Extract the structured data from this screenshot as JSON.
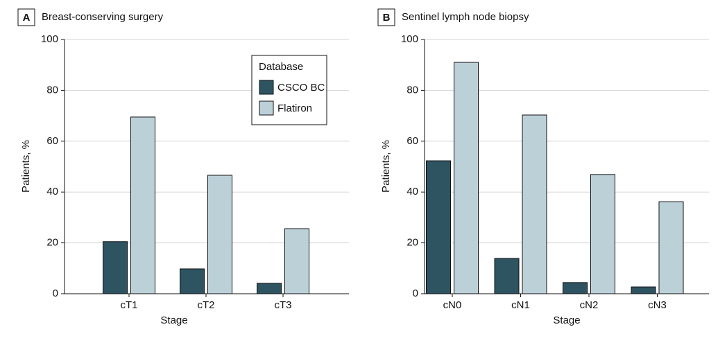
{
  "chart_data": [
    {
      "type": "bar",
      "panel": "A",
      "title": "Breast-conserving surgery",
      "xlabel": "Stage",
      "ylabel": "Patients, %",
      "categories": [
        "cT1",
        "cT2",
        "cT3"
      ],
      "series": [
        {
          "name": "CSCO BC",
          "color": "#2e5361",
          "values": [
            20.5,
            9.8,
            4.1
          ]
        },
        {
          "name": "Flatiron",
          "color": "#bcd0d8",
          "values": [
            69.5,
            46.6,
            25.6
          ]
        }
      ],
      "ylim": [
        0,
        100
      ],
      "yticks": [
        0,
        20,
        40,
        60,
        80,
        100
      ],
      "grid": true,
      "legend_title": "Database"
    },
    {
      "type": "bar",
      "panel": "B",
      "title": "Sentinel lymph node biopsy",
      "xlabel": "Stage",
      "ylabel": "Patients, %",
      "categories": [
        "cN0",
        "cN1",
        "cN2",
        "cN3"
      ],
      "series": [
        {
          "name": "CSCO BC",
          "color": "#2e5361",
          "values": [
            52.3,
            13.9,
            4.4,
            2.7
          ]
        },
        {
          "name": "Flatiron",
          "color": "#bcd0d8",
          "values": [
            91.0,
            70.3,
            46.9,
            36.2
          ]
        }
      ],
      "ylim": [
        0,
        100
      ],
      "yticks": [
        0,
        20,
        40,
        60,
        80,
        100
      ],
      "grid": true
    }
  ]
}
